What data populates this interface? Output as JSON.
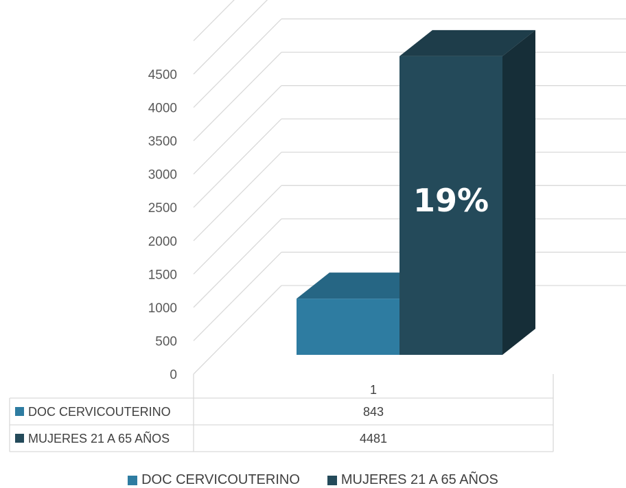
{
  "chart_data": {
    "type": "bar",
    "categories": [
      "1"
    ],
    "series": [
      {
        "name": "DOC CERVICOUTERINO",
        "values": [
          843
        ],
        "color": "#2e7ca1"
      },
      {
        "name": "MUJERES 21 A 65 AÑOS",
        "values": [
          4481
        ],
        "color": "#244a5a"
      }
    ],
    "ylim": [
      0,
      5000
    ],
    "yticks": [
      0,
      500,
      1000,
      1500,
      2000,
      2500,
      3000,
      3500,
      4000,
      4500
    ],
    "annotation": "19%",
    "grid": true,
    "legend_position": "bottom",
    "data_table": true
  }
}
